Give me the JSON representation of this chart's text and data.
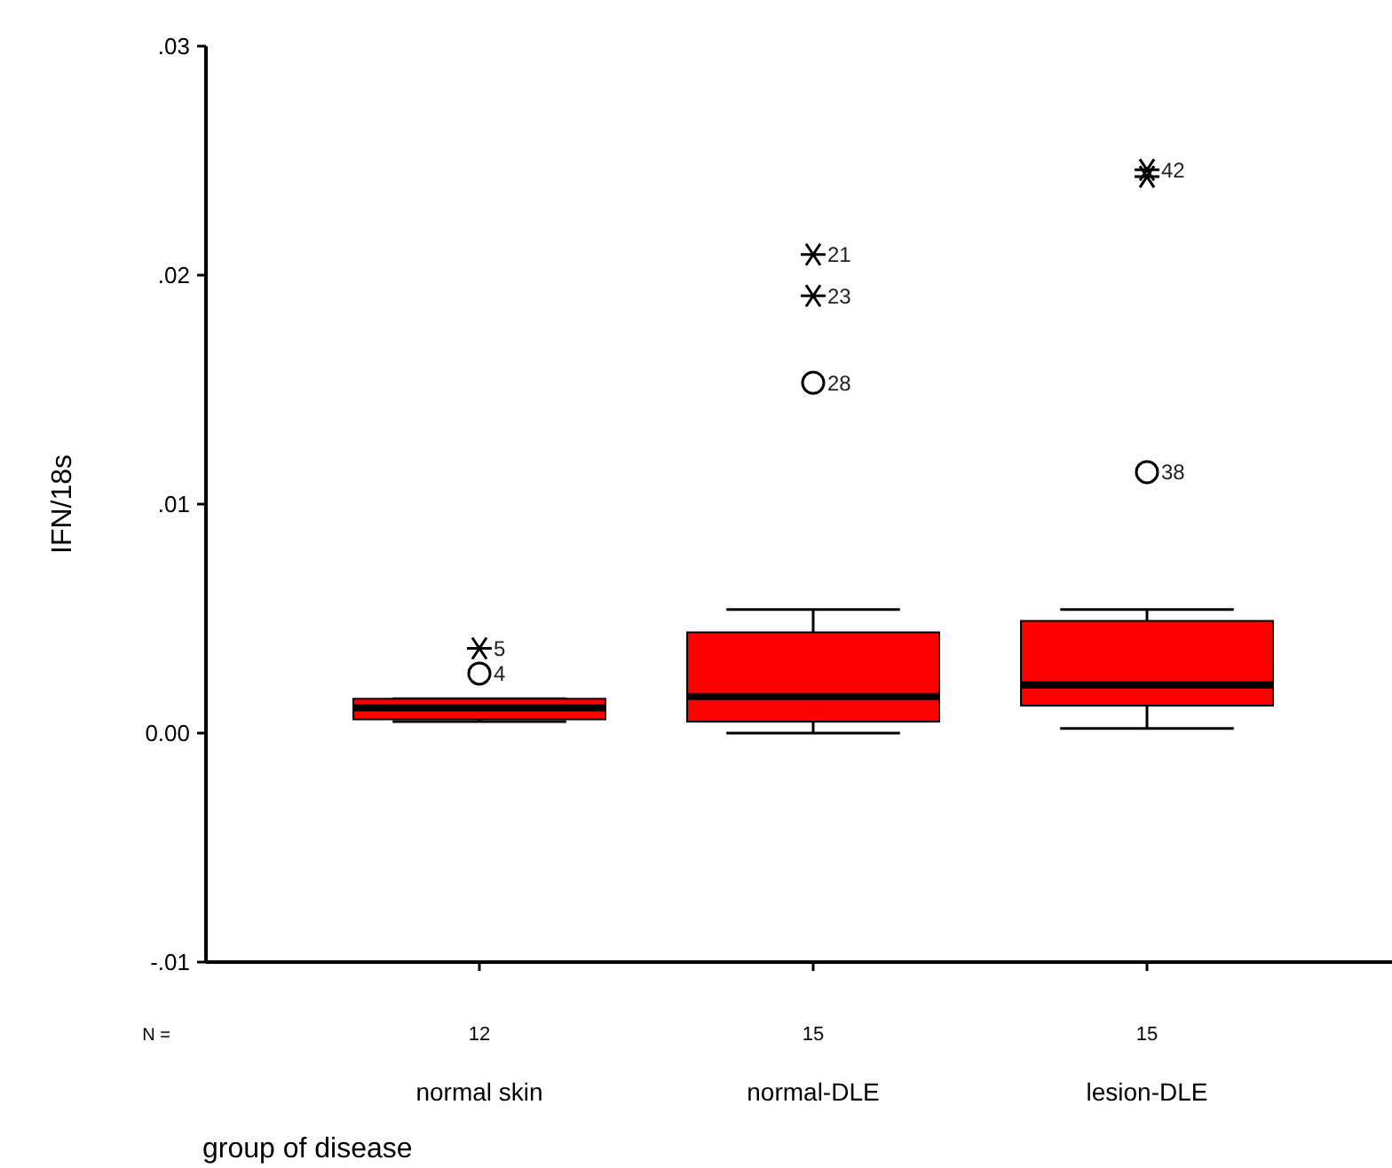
{
  "chart_data": {
    "type": "box",
    "xlabel": "group of disease",
    "ylabel": "IFN/18s",
    "categories": [
      "normal skin",
      "normal-DLE",
      "lesion-DLE"
    ],
    "ylim": [
      -0.01,
      0.03
    ],
    "yticks": [
      {
        "value": -0.01,
        "label": "-.01"
      },
      {
        "value": 0,
        "label": "0.00"
      },
      {
        "value": 0.01,
        "label": ".01"
      },
      {
        "value": 0.02,
        "label": ".02"
      },
      {
        "value": 0.03,
        "label": ".03"
      }
    ],
    "series": [
      {
        "color": "#ff0000",
        "boxes": [
          {
            "low": 0.0005,
            "q1": 0.0006,
            "median": 0.0011,
            "q3": 0.0015,
            "high": 0.0015
          },
          {
            "low": 0.0,
            "q1": 0.0005,
            "median": 0.0016,
            "q3": 0.0044,
            "high": 0.0054
          },
          {
            "low": 0.0002,
            "q1": 0.0012,
            "median": 0.0021,
            "q3": 0.0049,
            "high": 0.0054
          }
        ]
      },
      {
        "type": "scatter",
        "marker": "circle",
        "color": "#000000",
        "x": [
          "normal skin",
          "normal-DLE",
          "lesion-DLE"
        ],
        "values": [
          0.0026,
          0.0153,
          0.0114
        ]
      },
      {
        "type": "scatter",
        "marker": "cross",
        "color": "#000000",
        "x": [
          "normal skin",
          "normal-DLE",
          "normal-DLE",
          "lesion-DLE",
          "lesion-DLE"
        ],
        "values": [
          0.0037,
          0.0209,
          0.0191,
          0.0246,
          0.0243
        ]
      }
    ],
    "annotations": [
      {
        "text": "5",
        "x": "normal skin",
        "y": 0.0037
      },
      {
        "text": "4",
        "x": "normal skin",
        "y": 0.0026
      },
      {
        "text": "21",
        "x": "normal-DLE",
        "y": 0.0209
      },
      {
        "text": "23",
        "x": "normal-DLE",
        "y": 0.0191
      },
      {
        "text": "28",
        "x": "normal-DLE",
        "y": 0.0153
      },
      {
        "text": "42",
        "x": "lesion-DLE",
        "y": 0.0246
      },
      {
        "text": "38",
        "x": "lesion-DLE",
        "y": 0.0114
      },
      "N =",
      "12",
      "15",
      "15"
    ]
  }
}
